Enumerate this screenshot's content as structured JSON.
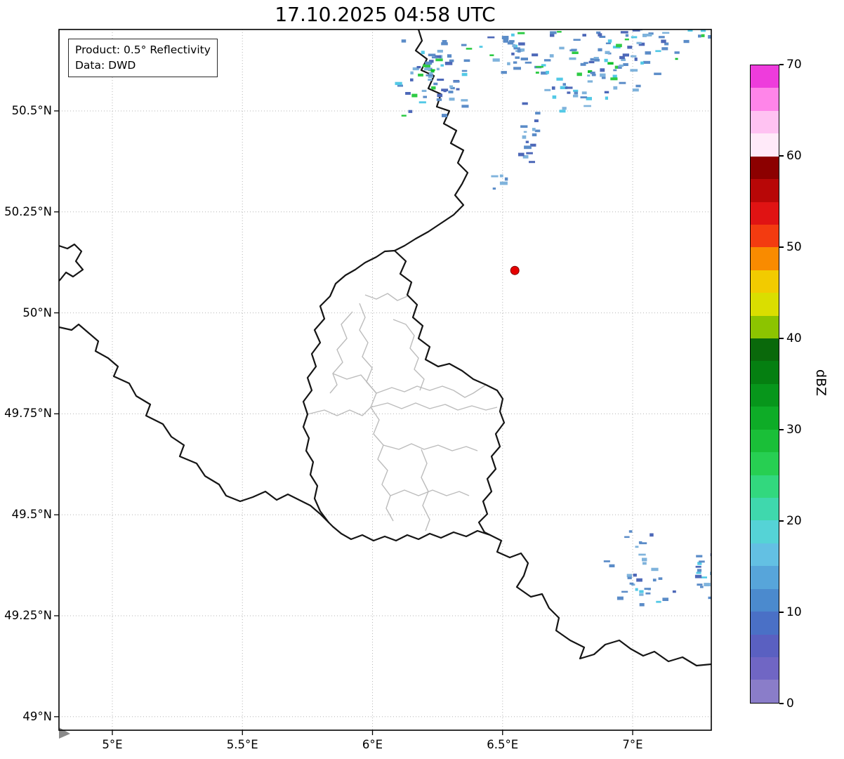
{
  "title": "17.10.2025 04:58 UTC",
  "info_box": {
    "line1": "Product: 0.5° Reflectivity",
    "line2": "Data: DWD"
  },
  "map": {
    "lat_ticks": [
      {
        "value": 50.5,
        "label": "50.5°N"
      },
      {
        "value": 50.25,
        "label": "50.25°N"
      },
      {
        "value": 50.0,
        "label": "50°N"
      },
      {
        "value": 49.75,
        "label": "49.75°N"
      },
      {
        "value": 49.5,
        "label": "49.5°N"
      },
      {
        "value": 49.25,
        "label": "49.25°N"
      },
      {
        "value": 49.0,
        "label": "49°N"
      }
    ],
    "lon_ticks": [
      {
        "value": 5.0,
        "label": "5°E"
      },
      {
        "value": 5.5,
        "label": "5.5°E"
      },
      {
        "value": 6.0,
        "label": "6°E"
      },
      {
        "value": 6.5,
        "label": "6.5°E"
      },
      {
        "value": 7.0,
        "label": "7°E"
      }
    ],
    "radar_site": {
      "lon": 6.547,
      "lat": 50.105,
      "marker_color": "#e60000"
    }
  },
  "colorbar": {
    "label": "dBZ",
    "min": 0,
    "max": 70,
    "tick_values": [
      0,
      10,
      20,
      30,
      40,
      50,
      60,
      70
    ],
    "colors_bottom_to_top": [
      "#8a7dc9",
      "#7066c4",
      "#5a60c1",
      "#4a70c6",
      "#4b8ace",
      "#57a5da",
      "#63c0e3",
      "#55d3d6",
      "#3fd8ad",
      "#32d87e",
      "#27cf52",
      "#1abf38",
      "#0eac27",
      "#07961b",
      "#057f11",
      "#0a690b",
      "#8cc400",
      "#dade00",
      "#f2cb00",
      "#f98b00",
      "#f33b10",
      "#e01313",
      "#b80707",
      "#8c0000",
      "#ffeaf9",
      "#ffc2f2",
      "#ff85e9",
      "#ee3cdc"
    ]
  },
  "echoes": {
    "palette": {
      "dark": "#4d68b8",
      "blue": "#5b8cc8",
      "light": "#7fb3dc",
      "cyan": "#53c9e6",
      "green": "#2ecb45",
      "bright": "#10c12c"
    },
    "mixes": {
      "north": [
        [
          "blue",
          0.44
        ],
        [
          "light",
          0.18
        ],
        [
          "dark",
          0.14
        ],
        [
          "cyan",
          0.12
        ],
        [
          "green",
          0.08
        ],
        [
          "bright",
          0.04
        ]
      ],
      "plain": [
        [
          "blue",
          0.52
        ],
        [
          "light",
          0.22
        ],
        [
          "dark",
          0.16
        ],
        [
          "cyan",
          0.1
        ]
      ],
      "greenish": [
        [
          "green",
          0.4
        ],
        [
          "cyan",
          0.25
        ],
        [
          "blue",
          0.35
        ]
      ]
    },
    "clusters": [
      {
        "lon": 6.263,
        "lat": 50.58,
        "dlon": 0.2,
        "dlat": 0.11,
        "n": 55,
        "mix": "north"
      },
      {
        "lon": 6.215,
        "lat": 50.612,
        "dlon": 0.07,
        "dlat": 0.035,
        "n": 10,
        "mix": "north"
      },
      {
        "lon": 6.538,
        "lat": 50.645,
        "dlon": 0.16,
        "dlat": 0.07,
        "n": 28,
        "mix": "north"
      },
      {
        "lon": 6.641,
        "lat": 50.601,
        "dlon": 0.05,
        "dlat": 0.025,
        "n": 6,
        "mix": "greenish"
      },
      {
        "lon": 6.911,
        "lat": 50.635,
        "dlon": 0.3,
        "dlat": 0.15,
        "n": 110,
        "mix": "north"
      },
      {
        "lon": 7.267,
        "lat": 50.69,
        "dlon": 0.07,
        "dlat": 0.03,
        "n": 8,
        "mix": "greenish"
      },
      {
        "lon": 6.744,
        "lat": 50.552,
        "dlon": 0.06,
        "dlat": 0.02,
        "n": 6,
        "mix": "plain"
      },
      {
        "lon": 6.603,
        "lat": 50.441,
        "dlon": 0.055,
        "dlat": 0.105,
        "n": 16,
        "mix": "plain"
      },
      {
        "lon": 6.49,
        "lat": 50.326,
        "dlon": 0.04,
        "dlat": 0.03,
        "n": 5,
        "mix": "plain"
      },
      {
        "lon": 7.029,
        "lat": 49.335,
        "dlon": 0.16,
        "dlat": 0.08,
        "n": 26,
        "mix": "plain"
      },
      {
        "lon": 7.013,
        "lat": 49.433,
        "dlon": 0.08,
        "dlat": 0.03,
        "n": 6,
        "mix": "plain"
      },
      {
        "lon": 7.261,
        "lat": 49.349,
        "dlon": 0.08,
        "dlat": 0.08,
        "n": 14,
        "mix": "plain"
      }
    ]
  }
}
